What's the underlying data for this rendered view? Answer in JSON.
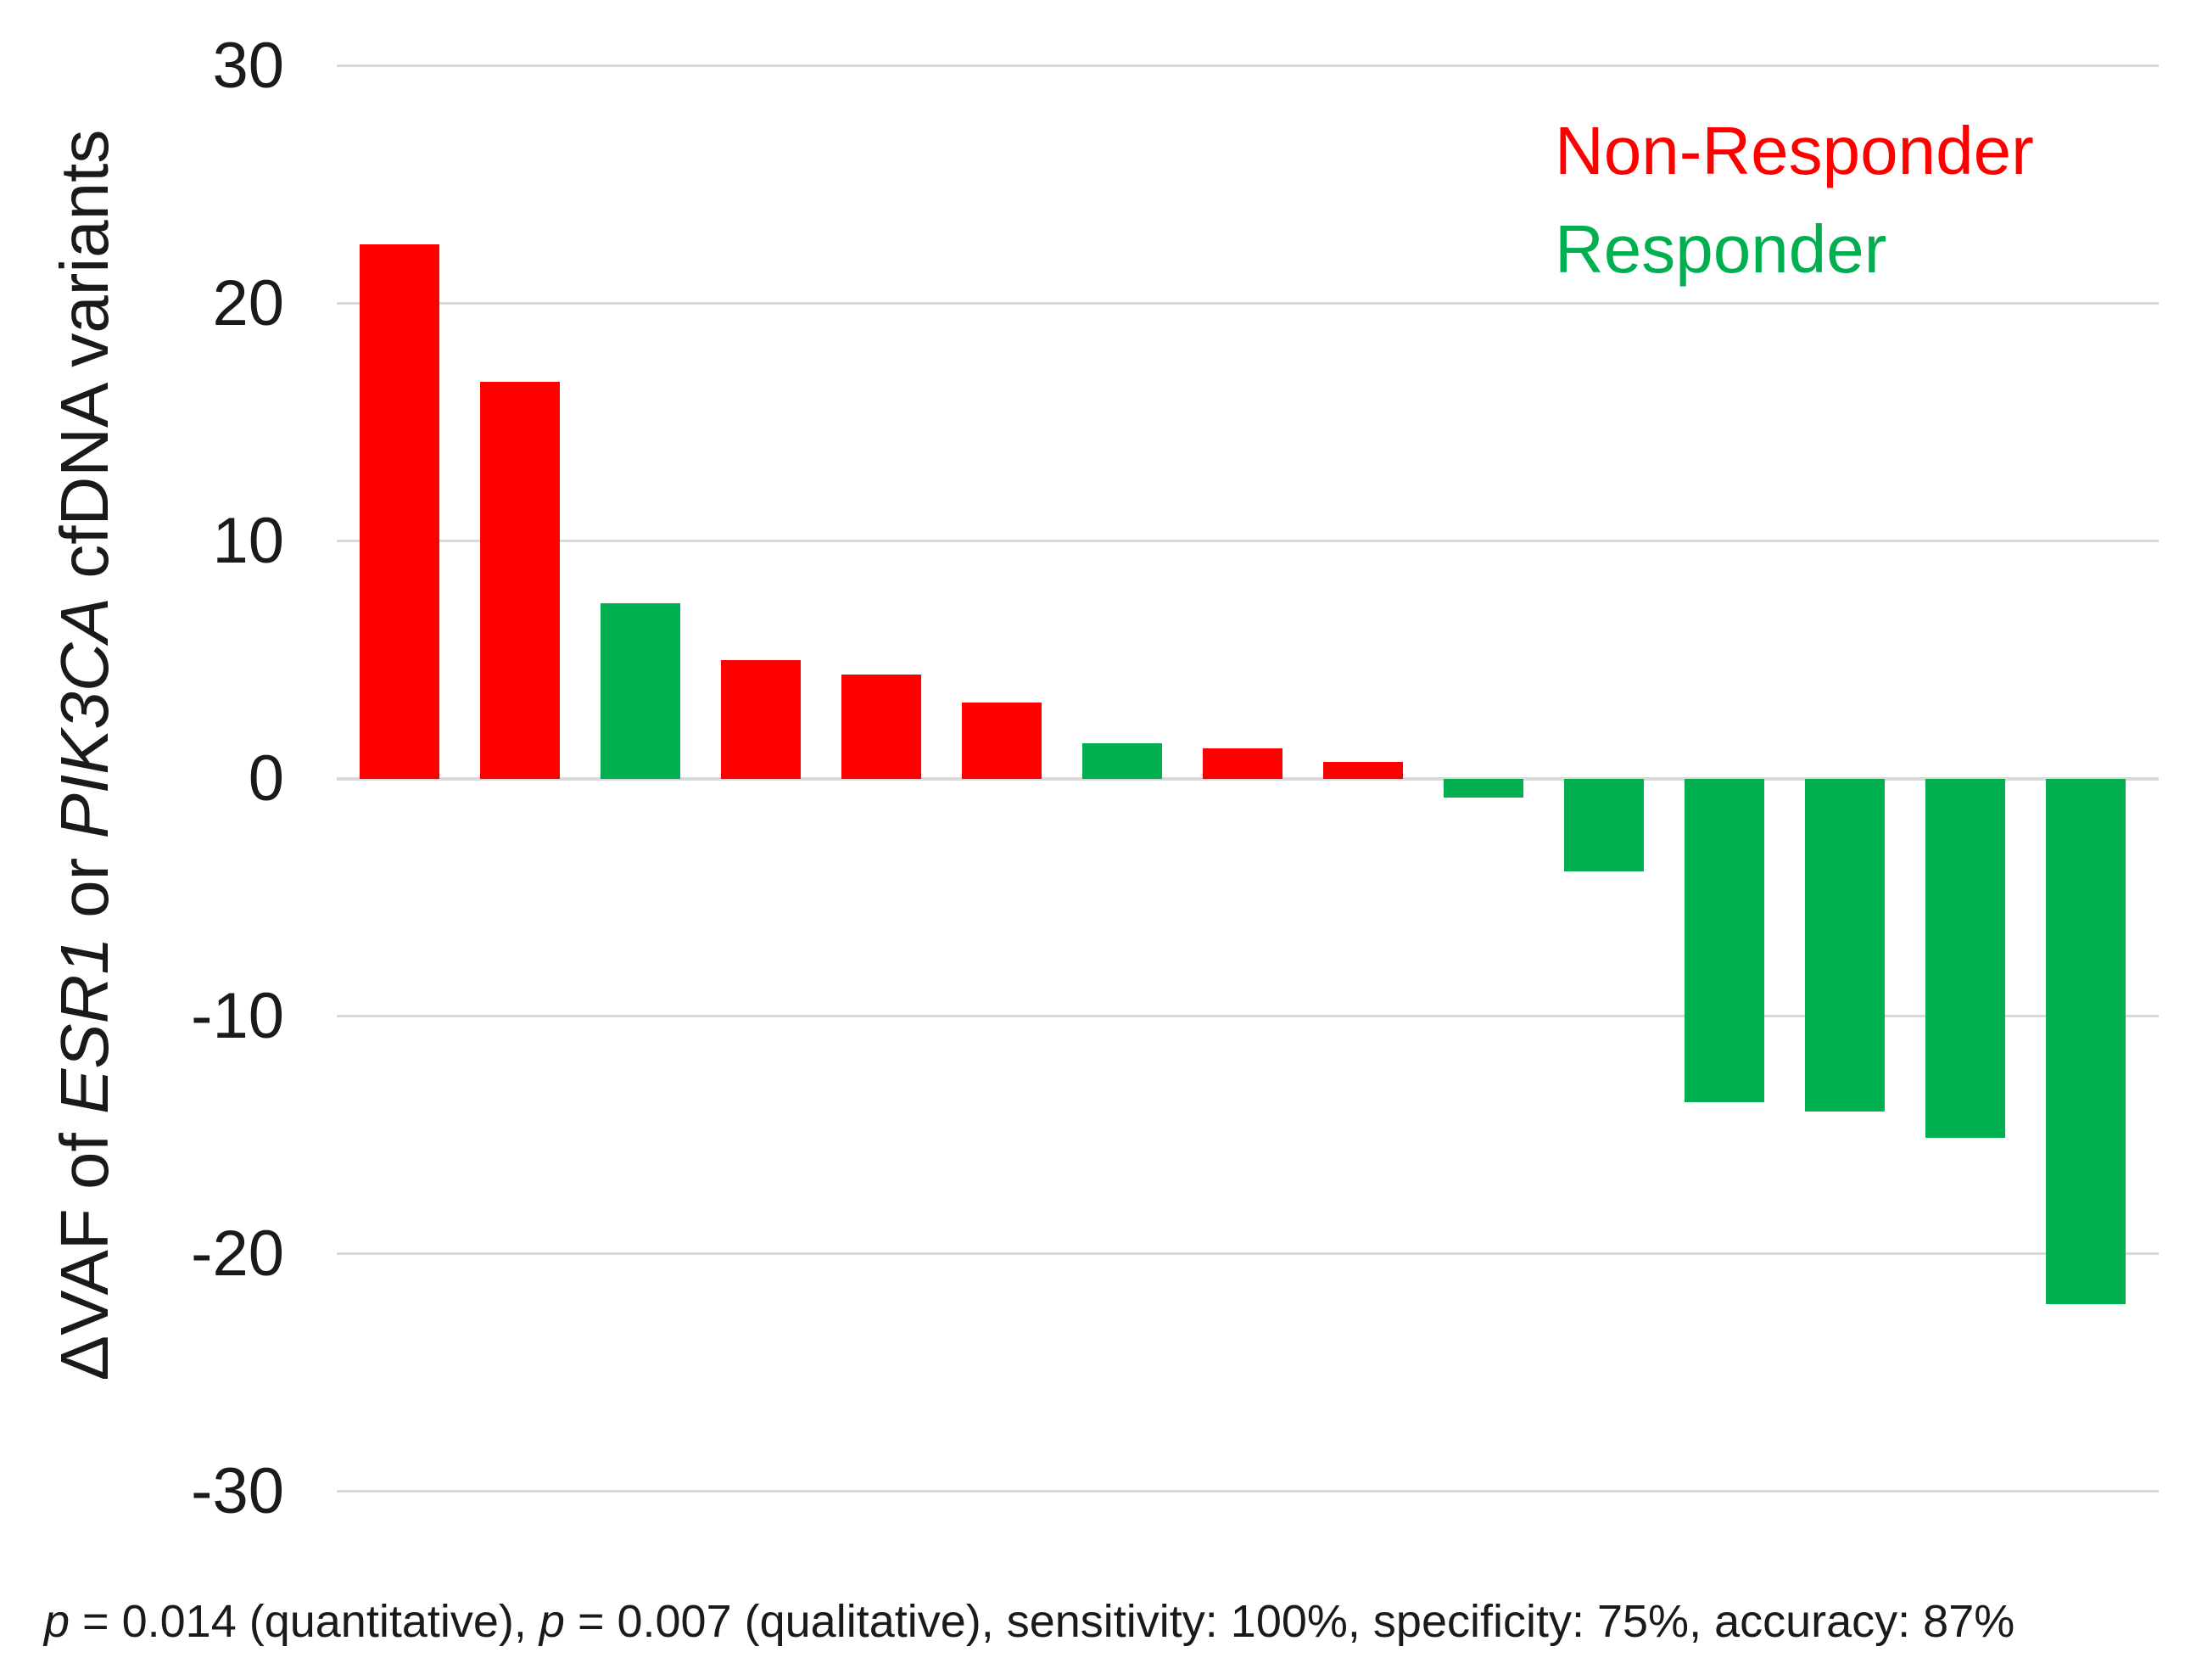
{
  "figure": {
    "y_axis_title": {
      "part1": "ΔVAF of ",
      "gene1": "ESR1",
      "part2": " or ",
      "gene2": "PIK3CA",
      "part3": " cfDNA variants"
    },
    "legend": [
      {
        "label": "Non-Responder",
        "color": "#ff0000"
      },
      {
        "label": "Responder",
        "color": "#00b050"
      }
    ],
    "caption": {
      "p1_italic": "p",
      "p2": " = 0.014 (quantitative), ",
      "p3_italic": "p",
      "p4": " = 0.007 (qualitative), sensitivity: 100%, specificity: 75%, accuracy: 87%"
    }
  },
  "chart_data": {
    "type": "bar",
    "title": "",
    "xlabel": "",
    "ylabel": "ΔVAF of ESR1 or PIK3CA cfDNA variants",
    "ylim": [
      -30,
      30
    ],
    "yticks": [
      30,
      20,
      10,
      0,
      -10,
      -20,
      -30
    ],
    "grid": true,
    "legend_position": "top-right",
    "colors": {
      "Non-Responder": "#ff0000",
      "Responder": "#00b050"
    },
    "bars": [
      {
        "value": 22.5,
        "group": "Non-Responder"
      },
      {
        "value": 16.7,
        "group": "Non-Responder"
      },
      {
        "value": 7.4,
        "group": "Responder"
      },
      {
        "value": 5.0,
        "group": "Non-Responder"
      },
      {
        "value": 4.4,
        "group": "Non-Responder"
      },
      {
        "value": 3.2,
        "group": "Non-Responder"
      },
      {
        "value": 1.5,
        "group": "Responder"
      },
      {
        "value": 1.3,
        "group": "Non-Responder"
      },
      {
        "value": 0.7,
        "group": "Non-Responder"
      },
      {
        "value": -0.8,
        "group": "Responder"
      },
      {
        "value": -3.9,
        "group": "Responder"
      },
      {
        "value": -13.6,
        "group": "Responder"
      },
      {
        "value": -14.0,
        "group": "Responder"
      },
      {
        "value": -15.1,
        "group": "Responder"
      },
      {
        "value": -22.1,
        "group": "Responder"
      }
    ],
    "stats_caption": "p = 0.014 (quantitative), p = 0.007 (qualitative), sensitivity: 100%, specificity: 75%, accuracy: 87%"
  }
}
